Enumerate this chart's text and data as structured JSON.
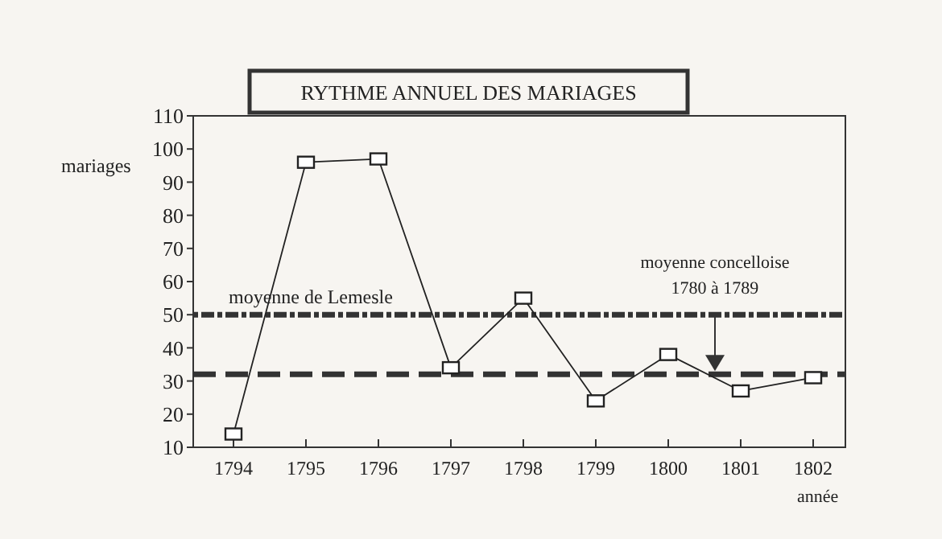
{
  "chart_data": {
    "type": "line",
    "title": "RYTHME ANNUEL DES MARIAGES",
    "xlabel": "année",
    "ylabel": "mariages",
    "categories": [
      "1794",
      "1795",
      "1796",
      "1797",
      "1798",
      "1799",
      "1800",
      "1801",
      "1802"
    ],
    "series": [
      {
        "color": "#222222",
        "values": [
          14,
          96,
          97,
          34,
          55,
          24,
          38,
          27,
          31
        ]
      }
    ],
    "ylim": [
      10,
      110
    ],
    "yticks": [
      10,
      20,
      30,
      40,
      50,
      60,
      70,
      80,
      90,
      100,
      110
    ],
    "marker": "square",
    "line_style": "solid",
    "grid": false,
    "ref_lines": [
      {
        "axis": "y",
        "value": 50,
        "label": "moyenne de Lemesle",
        "color": "#333333",
        "line_style": "dotted"
      },
      {
        "axis": "y",
        "value": 32,
        "label": "moyenne concelloise 1780 à 1789",
        "color": "#333333",
        "line_style": "dashed"
      }
    ]
  }
}
